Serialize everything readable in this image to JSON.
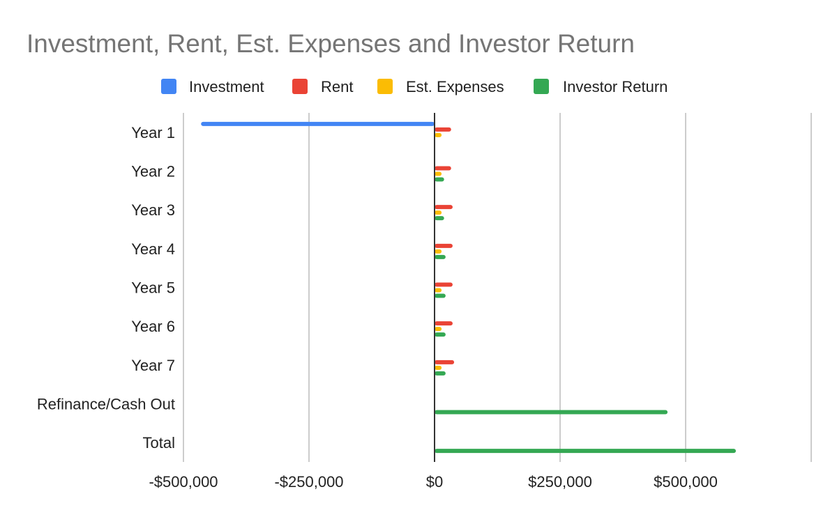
{
  "chart_data": {
    "type": "bar",
    "orientation": "horizontal",
    "title": "Investment, Rent, Est. Expenses and Investor Return",
    "xlabel": "",
    "ylabel": "",
    "legend_position": "top",
    "grid": true,
    "xlim": [
      -500000,
      750000
    ],
    "x_ticks": [
      -500000,
      -250000,
      0,
      250000,
      500000
    ],
    "x_tick_labels": [
      "-$500,000",
      "-$250,000",
      "$0",
      "$250,000",
      "$500,000"
    ],
    "categories": [
      "Year 1",
      "Year 2",
      "Year 3",
      "Year 4",
      "Year 5",
      "Year 6",
      "Year 7",
      "Refinance/Cash Out",
      "Total"
    ],
    "series": [
      {
        "name": "Investment",
        "color": "#4285F4",
        "values": [
          -465000,
          0,
          0,
          0,
          0,
          0,
          0,
          0,
          0
        ]
      },
      {
        "name": "Rent",
        "color": "#EA4335",
        "values": [
          33000,
          33000,
          36000,
          36000,
          36000,
          36000,
          39000,
          0,
          0
        ]
      },
      {
        "name": "Est. Expenses",
        "color": "#FBBC04",
        "values": [
          14000,
          14000,
          14000,
          14000,
          14000,
          14000,
          14000,
          0,
          0
        ]
      },
      {
        "name": "Investor Return",
        "color": "#34A853",
        "values": [
          0,
          19000,
          19000,
          22000,
          22000,
          22000,
          22000,
          464000,
          600000
        ]
      }
    ]
  }
}
